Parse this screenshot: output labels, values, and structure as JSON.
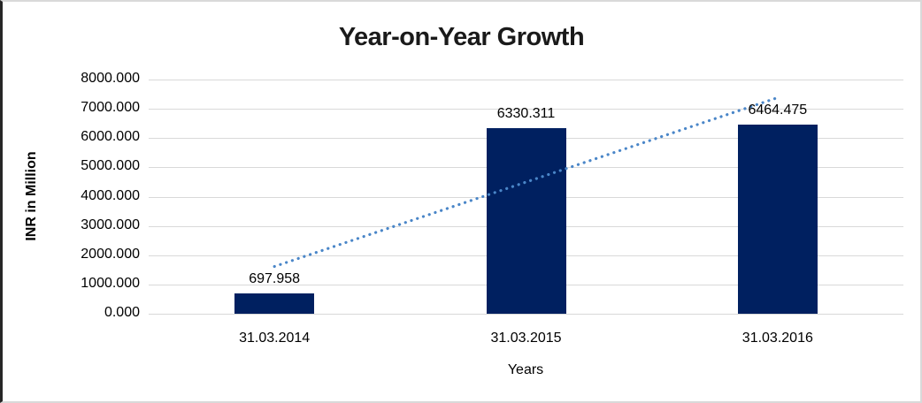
{
  "chart_data": {
    "type": "bar",
    "title": "Year-on-Year Growth",
    "xlabel": "Years",
    "ylabel": "INR in Million",
    "categories": [
      "31.03.2014",
      "31.03.2015",
      "31.03.2016"
    ],
    "values": [
      697.958,
      6330.311,
      6464.475
    ],
    "data_labels": [
      "697.958",
      "6330.311",
      "6464.475"
    ],
    "ylim": [
      0,
      8000
    ],
    "ytick_step": 1000,
    "ytick_labels": [
      "0.000",
      "1000.000",
      "2000.000",
      "3000.000",
      "4000.000",
      "5000.000",
      "6000.000",
      "7000.000",
      "8000.000"
    ],
    "grid": true,
    "legend_position": "none",
    "trendline": {
      "type": "linear",
      "style": "dotted",
      "endpoint_values": [
        1614.33,
        7380.85
      ]
    },
    "colors": {
      "bar": "#002060",
      "trendline": "#4a86c8",
      "grid": "#d9d9d9",
      "title_text": "#1a1a1a",
      "axis_text": "#000000"
    }
  }
}
